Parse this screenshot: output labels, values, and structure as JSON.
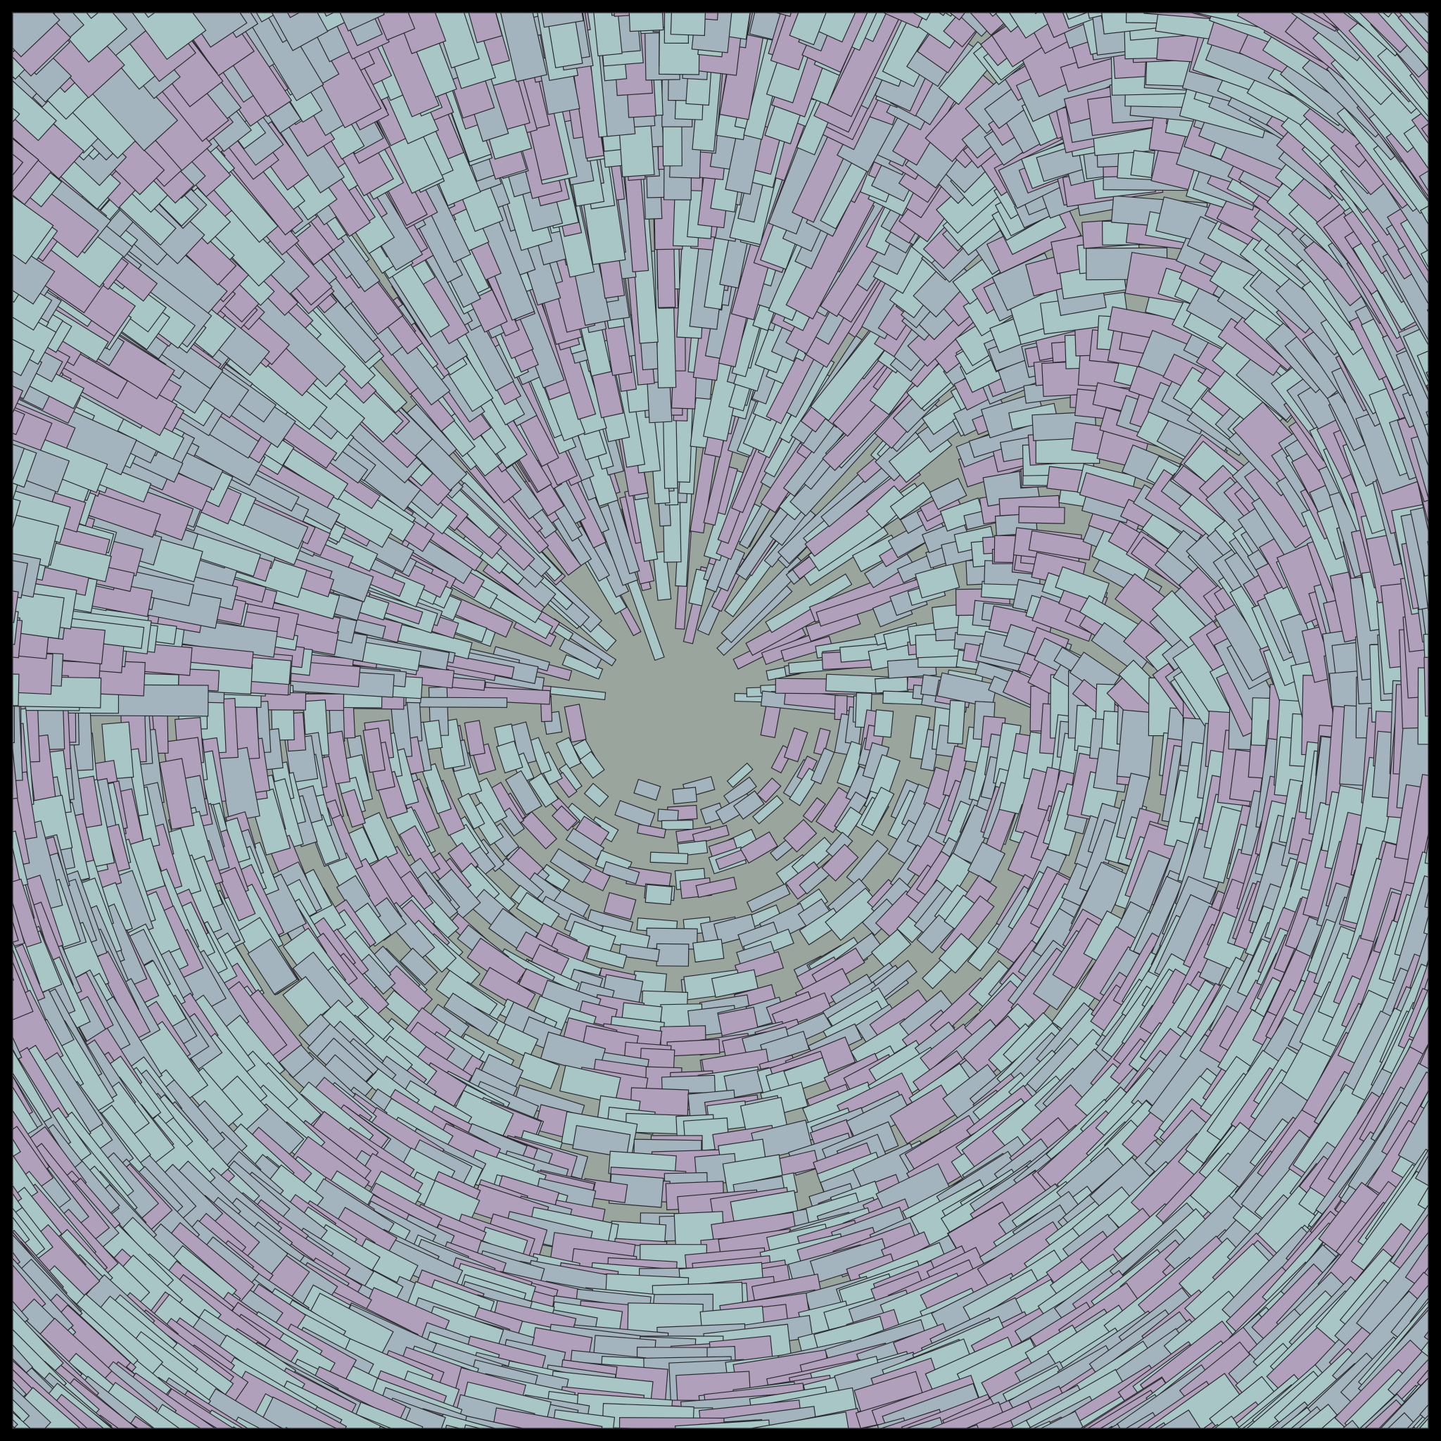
{
  "artwork": {
    "style": "generative vortex of rotated rectangles",
    "colors": {
      "frame": "#000000",
      "background": "#9aa59e",
      "stroke": "#2a2a2e",
      "palette": [
        "#b0a0bb",
        "#a8c6c6",
        "#a4b4be"
      ]
    }
  }
}
